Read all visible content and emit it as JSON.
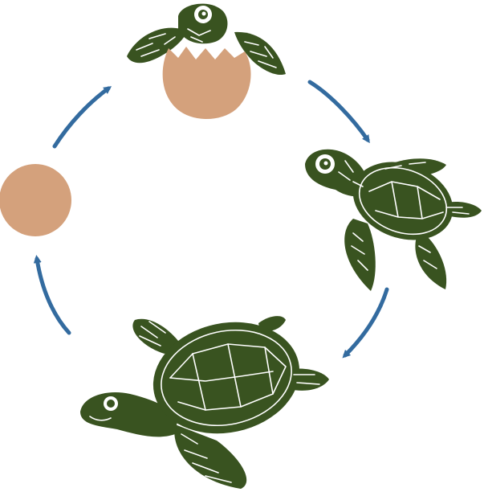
{
  "diagram": {
    "stages": [
      {
        "name": "egg-stage"
      },
      {
        "name": "hatchling-stage"
      },
      {
        "name": "juvenile-stage"
      },
      {
        "name": "adult-stage"
      }
    ],
    "arrow_count": 4
  },
  "colors": {
    "background": "#ffffff",
    "egg": "#d4a17c",
    "turtle_dark": "#395320",
    "turtle_line": "#ffffff",
    "arrow": "#336b9f"
  }
}
